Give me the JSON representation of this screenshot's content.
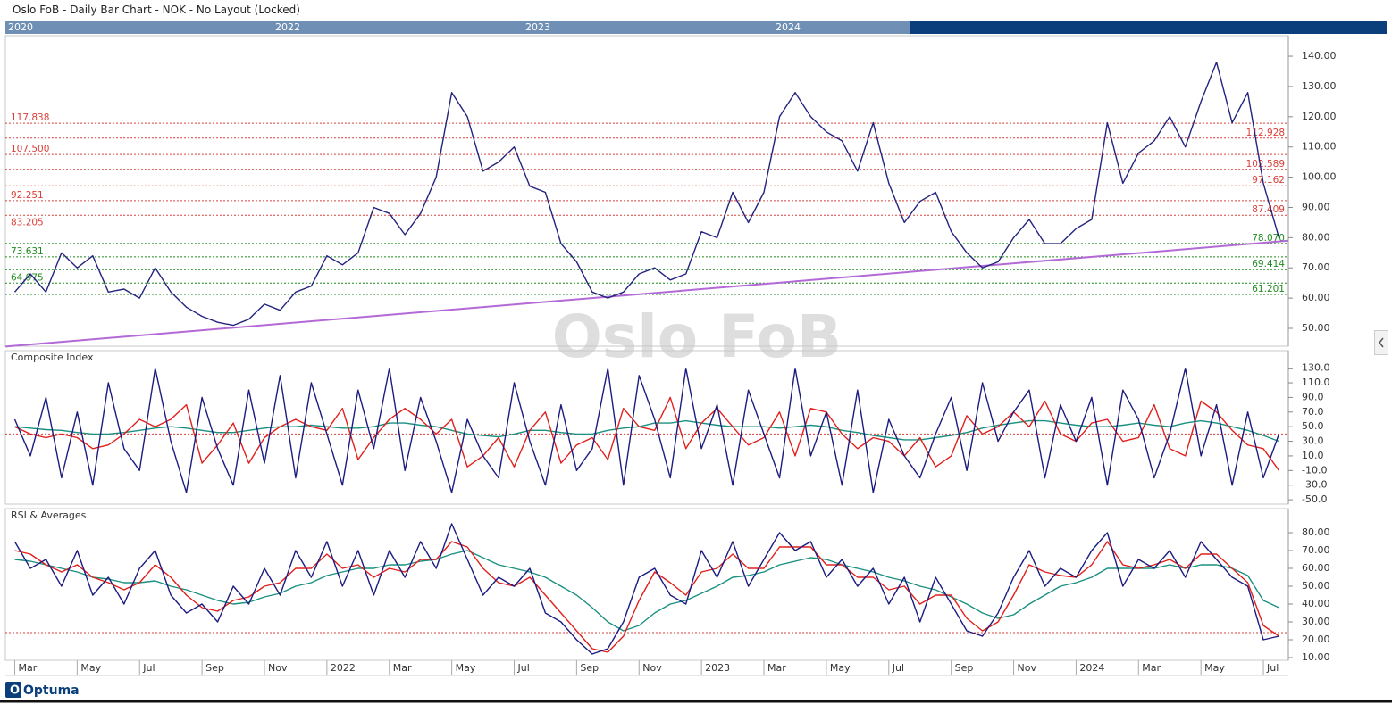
{
  "window_title": "Oslo FoB - Daily Bar Chart - NOK - No Layout (Locked)",
  "navigator": {
    "labels": [
      "2020",
      "2022",
      "2023",
      "2024"
    ]
  },
  "watermark": "Oslo FoB",
  "brand": "Optuma",
  "chart_data": [
    {
      "type": "line",
      "xlim": [
        1.7,
        42.8
      ],
      "ylim": [
        44.1,
        146.8
      ],
      "yticks": [
        {
          "value": 140,
          "label": "140.00"
        },
        {
          "value": 130,
          "label": "130.00"
        },
        {
          "value": 120,
          "label": "120.00"
        },
        {
          "value": 110,
          "label": "110.00"
        },
        {
          "value": 100,
          "label": "100.00"
        },
        {
          "value": 90,
          "label": "90.00"
        },
        {
          "value": 80,
          "label": "80.00"
        },
        {
          "value": 70,
          "label": "70.00"
        },
        {
          "value": 60,
          "label": "60.00"
        },
        {
          "value": 50,
          "label": "50.00"
        }
      ],
      "x": [
        2,
        2.5,
        3,
        3.5,
        4,
        4.5,
        5,
        5.5,
        6,
        6.5,
        7,
        7.5,
        8,
        8.5,
        9,
        9.5,
        10,
        10.5,
        11,
        11.5,
        12,
        12.5,
        13,
        13.5,
        14,
        14.5,
        15,
        15.5,
        16,
        16.5,
        17,
        17.5,
        18,
        18.5,
        19,
        19.5,
        20,
        20.5,
        21,
        21.5,
        22,
        22.5,
        23,
        23.5,
        24,
        24.5,
        25,
        25.5,
        26,
        26.5,
        27,
        27.5,
        28,
        28.5,
        29,
        29.5,
        30,
        30.5,
        31,
        31.5,
        32,
        32.5,
        33,
        33.5,
        34,
        34.5,
        35,
        35.5,
        36,
        36.5,
        37,
        37.5,
        38,
        38.5,
        39,
        39.5,
        40,
        40.5,
        41,
        41.5,
        42,
        42.5
      ],
      "series": [
        {
          "color": "#23237e",
          "values": [
            62,
            68,
            62,
            75,
            70,
            74,
            62,
            63,
            60,
            70,
            62,
            57,
            54,
            52,
            51,
            53,
            58,
            56,
            62,
            64,
            74,
            71,
            75,
            90,
            88,
            81,
            88,
            100,
            128,
            120,
            102,
            105,
            110,
            97,
            95,
            78,
            72,
            62,
            60,
            62,
            68,
            70,
            66,
            68,
            82,
            80,
            95,
            85,
            95,
            120,
            128,
            120,
            115,
            112,
            102,
            118,
            98,
            85,
            92,
            95,
            82,
            75,
            70,
            72,
            80,
            86,
            78,
            78,
            83,
            86,
            118,
            98,
            108,
            112,
            120,
            110,
            125,
            138,
            118,
            128,
            98,
            80
          ]
        }
      ],
      "trendline": {
        "color": "#b36ad6",
        "x": [
          1.7,
          42.8
        ],
        "y": [
          44,
          79
        ]
      },
      "levels": [
        {
          "value": 117.838,
          "label": "117.838",
          "color": "#d9403a",
          "label_side": "left"
        },
        {
          "value": 112.928,
          "label": "112.928",
          "color": "#d9403a",
          "label_side": "right"
        },
        {
          "value": 107.5,
          "label": "107.500",
          "color": "#d9403a",
          "label_side": "left"
        },
        {
          "value": 102.589,
          "label": "102.589",
          "color": "#d9403a",
          "label_side": "right"
        },
        {
          "value": 97.162,
          "label": "97.162",
          "color": "#d9403a",
          "label_side": "right"
        },
        {
          "value": 92.251,
          "label": "92.251",
          "color": "#d9403a",
          "label_side": "left"
        },
        {
          "value": 87.409,
          "label": "87.409",
          "color": "#d9403a",
          "label_side": "right"
        },
        {
          "value": 83.205,
          "label": "83.205",
          "color": "#d9403a",
          "label_side": "left"
        },
        {
          "value": 78.07,
          "label": "78.070",
          "color": "#1f8a1f",
          "label_side": "right"
        },
        {
          "value": 73.631,
          "label": "73.631",
          "color": "#1f8a1f",
          "label_side": "left"
        },
        {
          "value": 69.414,
          "label": "69.414",
          "color": "#1f8a1f",
          "label_side": "right"
        },
        {
          "value": 64.975,
          "label": "64.975",
          "color": "#1f8a1f",
          "label_side": "left"
        },
        {
          "value": 61.201,
          "label": "61.201",
          "color": "#1f8a1f",
          "label_side": "right"
        }
      ]
    },
    {
      "type": "line",
      "title": "Composite Index",
      "xlim": [
        1.7,
        42.8
      ],
      "ylim": [
        -56,
        154
      ],
      "yticks": [
        {
          "value": 130,
          "label": "130.0"
        },
        {
          "value": 110,
          "label": "110.0"
        },
        {
          "value": 90,
          "label": "90.0"
        },
        {
          "value": 70,
          "label": "70.0"
        },
        {
          "value": 50,
          "label": "50.0"
        },
        {
          "value": 30,
          "label": "30.0"
        },
        {
          "value": 10,
          "label": "10.0"
        },
        {
          "value": -10,
          "label": "-10.0"
        },
        {
          "value": -30,
          "label": "-30.0"
        },
        {
          "value": -50,
          "label": "-50.0"
        }
      ],
      "reference_line": {
        "value": 40,
        "color": "#d9403a"
      },
      "x": [
        2,
        2.5,
        3,
        3.5,
        4,
        4.5,
        5,
        5.5,
        6,
        6.5,
        7,
        7.5,
        8,
        8.5,
        9,
        9.5,
        10,
        10.5,
        11,
        11.5,
        12,
        12.5,
        13,
        13.5,
        14,
        14.5,
        15,
        15.5,
        16,
        16.5,
        17,
        17.5,
        18,
        18.5,
        19,
        19.5,
        20,
        20.5,
        21,
        21.5,
        22,
        22.5,
        23,
        23.5,
        24,
        24.5,
        25,
        25.5,
        26,
        26.5,
        27,
        27.5,
        28,
        28.5,
        29,
        29.5,
        30,
        30.5,
        31,
        31.5,
        32,
        32.5,
        33,
        33.5,
        34,
        34.5,
        35,
        35.5,
        36,
        36.5,
        37,
        37.5,
        38,
        38.5,
        39,
        39.5,
        40,
        40.5,
        41,
        41.5,
        42,
        42.5
      ],
      "series": [
        {
          "color": "#1a9080",
          "values": [
            50,
            48,
            46,
            45,
            42,
            40,
            40,
            42,
            45,
            48,
            50,
            48,
            45,
            42,
            42,
            45,
            48,
            50,
            50,
            52,
            50,
            48,
            48,
            50,
            55,
            55,
            52,
            50,
            45,
            40,
            38,
            36,
            40,
            45,
            45,
            42,
            40,
            40,
            45,
            48,
            50,
            55,
            55,
            58,
            55,
            52,
            50,
            50,
            50,
            48,
            50,
            52,
            50,
            45,
            42,
            38,
            35,
            32,
            32,
            35,
            38,
            42,
            48,
            52,
            55,
            58,
            58,
            55,
            52,
            50,
            50,
            52,
            55,
            52,
            50,
            55,
            58,
            55,
            50,
            45,
            38,
            30
          ]
        },
        {
          "color": "#e0201c",
          "values": [
            50,
            40,
            35,
            40,
            35,
            20,
            25,
            40,
            60,
            50,
            60,
            80,
            0,
            25,
            55,
            0,
            35,
            50,
            60,
            50,
            45,
            75,
            5,
            35,
            60,
            75,
            60,
            40,
            60,
            -5,
            10,
            35,
            -5,
            45,
            70,
            0,
            25,
            35,
            5,
            75,
            50,
            45,
            90,
            20,
            55,
            75,
            50,
            25,
            35,
            70,
            10,
            75,
            70,
            40,
            20,
            35,
            30,
            10,
            35,
            -5,
            10,
            65,
            40,
            50,
            70,
            50,
            85,
            40,
            30,
            55,
            60,
            30,
            35,
            80,
            20,
            10,
            85,
            70,
            45,
            25,
            20,
            -10
          ]
        },
        {
          "color": "#1c1c80",
          "values": [
            60,
            10,
            90,
            -20,
            70,
            -30,
            110,
            20,
            -10,
            130,
            30,
            -40,
            90,
            20,
            -30,
            100,
            0,
            120,
            -20,
            110,
            40,
            -30,
            100,
            20,
            130,
            -10,
            90,
            30,
            -40,
            60,
            10,
            -20,
            110,
            30,
            -30,
            80,
            -10,
            20,
            130,
            -30,
            120,
            60,
            -20,
            130,
            20,
            80,
            -30,
            100,
            40,
            -20,
            130,
            10,
            70,
            -30,
            100,
            -40,
            60,
            10,
            -20,
            40,
            90,
            -10,
            110,
            30,
            70,
            100,
            -20,
            80,
            30,
            90,
            -30,
            100,
            60,
            -20,
            40,
            130,
            10,
            80,
            -30,
            70,
            -20,
            40
          ]
        }
      ]
    },
    {
      "type": "line",
      "title": "RSI & Averages",
      "xlim": [
        1.7,
        42.8
      ],
      "ylim": [
        8.5,
        93.5
      ],
      "yticks": [
        {
          "value": 80,
          "label": "80.00"
        },
        {
          "value": 70,
          "label": "70.00"
        },
        {
          "value": 60,
          "label": "60.00"
        },
        {
          "value": 50,
          "label": "50.00"
        },
        {
          "value": 40,
          "label": "40.00"
        },
        {
          "value": 30,
          "label": "30.00"
        },
        {
          "value": 20,
          "label": "20.00"
        },
        {
          "value": 10,
          "label": "10.00"
        }
      ],
      "xticks": [
        {
          "value": 2,
          "label": "Mar"
        },
        {
          "value": 4,
          "label": "May"
        },
        {
          "value": 6,
          "label": "Jul"
        },
        {
          "value": 8,
          "label": "Sep"
        },
        {
          "value": 10,
          "label": "Nov"
        },
        {
          "value": 12,
          "label": "2022"
        },
        {
          "value": 14,
          "label": "Mar"
        },
        {
          "value": 16,
          "label": "May"
        },
        {
          "value": 18,
          "label": "Jul"
        },
        {
          "value": 20,
          "label": "Sep"
        },
        {
          "value": 22,
          "label": "Nov"
        },
        {
          "value": 24,
          "label": "2023"
        },
        {
          "value": 26,
          "label": "Mar"
        },
        {
          "value": 28,
          "label": "May"
        },
        {
          "value": 30,
          "label": "Jul"
        },
        {
          "value": 32,
          "label": "Sep"
        },
        {
          "value": 34,
          "label": "Nov"
        },
        {
          "value": 36,
          "label": "2024"
        },
        {
          "value": 38,
          "label": "Mar"
        },
        {
          "value": 40,
          "label": "May"
        },
        {
          "value": 42,
          "label": "Jul"
        }
      ],
      "reference_line": {
        "value": 24,
        "color": "#d9403a"
      },
      "x": [
        2,
        2.5,
        3,
        3.5,
        4,
        4.5,
        5,
        5.5,
        6,
        6.5,
        7,
        7.5,
        8,
        8.5,
        9,
        9.5,
        10,
        10.5,
        11,
        11.5,
        12,
        12.5,
        13,
        13.5,
        14,
        14.5,
        15,
        15.5,
        16,
        16.5,
        17,
        17.5,
        18,
        18.5,
        19,
        19.5,
        20,
        20.5,
        21,
        21.5,
        22,
        22.5,
        23,
        23.5,
        24,
        24.5,
        25,
        25.5,
        26,
        26.5,
        27,
        27.5,
        28,
        28.5,
        29,
        29.5,
        30,
        30.5,
        31,
        31.5,
        32,
        32.5,
        33,
        33.5,
        34,
        34.5,
        35,
        35.5,
        36,
        36.5,
        37,
        37.5,
        38,
        38.5,
        39,
        39.5,
        40,
        40.5,
        41,
        41.5,
        42,
        42.5
      ],
      "series": [
        {
          "color": "#1a9080",
          "values": [
            65,
            64,
            62,
            60,
            58,
            55,
            54,
            52,
            52,
            53,
            50,
            48,
            45,
            42,
            40,
            41,
            44,
            46,
            50,
            52,
            56,
            58,
            60,
            60,
            62,
            62,
            64,
            65,
            68,
            70,
            66,
            62,
            60,
            58,
            55,
            50,
            45,
            38,
            30,
            25,
            28,
            35,
            40,
            42,
            46,
            50,
            55,
            56,
            58,
            62,
            64,
            66,
            65,
            62,
            60,
            58,
            55,
            53,
            50,
            48,
            44,
            40,
            35,
            32,
            34,
            40,
            45,
            50,
            52,
            55,
            60,
            60,
            60,
            60,
            62,
            60,
            62,
            62,
            60,
            56,
            42,
            38
          ]
        },
        {
          "color": "#e0201c",
          "values": [
            70,
            68,
            62,
            58,
            62,
            55,
            52,
            48,
            52,
            62,
            55,
            45,
            38,
            36,
            42,
            44,
            50,
            52,
            60,
            60,
            68,
            60,
            62,
            55,
            60,
            58,
            65,
            65,
            75,
            72,
            60,
            52,
            50,
            55,
            45,
            35,
            25,
            15,
            13,
            22,
            42,
            58,
            52,
            45,
            58,
            60,
            68,
            60,
            60,
            72,
            72,
            72,
            62,
            62,
            55,
            55,
            48,
            50,
            40,
            45,
            45,
            32,
            25,
            30,
            45,
            62,
            58,
            56,
            55,
            62,
            75,
            62,
            60,
            62,
            65,
            60,
            68,
            68,
            60,
            52,
            28,
            22
          ]
        },
        {
          "color": "#1c1c80",
          "values": [
            75,
            60,
            65,
            50,
            70,
            45,
            55,
            40,
            60,
            70,
            45,
            35,
            40,
            30,
            50,
            40,
            60,
            45,
            70,
            55,
            75,
            50,
            70,
            45,
            70,
            55,
            75,
            60,
            85,
            65,
            45,
            55,
            50,
            60,
            35,
            30,
            20,
            12,
            15,
            30,
            55,
            60,
            45,
            40,
            70,
            55,
            75,
            50,
            65,
            80,
            70,
            75,
            55,
            65,
            50,
            60,
            40,
            55,
            30,
            55,
            40,
            25,
            22,
            35,
            55,
            70,
            50,
            60,
            55,
            70,
            80,
            50,
            65,
            60,
            70,
            55,
            75,
            65,
            55,
            50,
            20,
            22
          ]
        }
      ]
    }
  ]
}
